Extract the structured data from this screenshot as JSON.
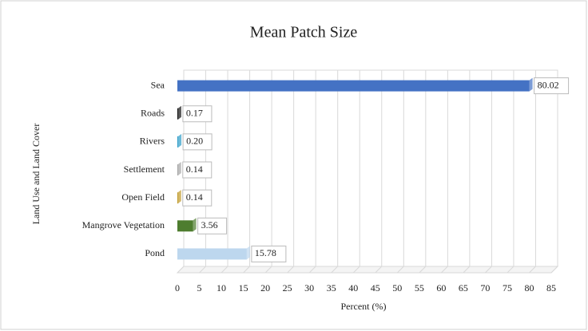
{
  "chart_data": {
    "type": "bar",
    "orientation": "horizontal",
    "title": "Mean Patch Size",
    "x_label": "Percent (%)",
    "y_label": "Land Use and Land Cover",
    "categories": [
      "Sea",
      "Roads",
      "Rivers",
      "Settlement",
      "Open Field",
      "Mangrove Vegetation",
      "Pond"
    ],
    "values": [
      80.02,
      0.17,
      0.2,
      0.14,
      0.14,
      3.56,
      15.78
    ],
    "value_labels": [
      "80.02",
      "0.17",
      "0.20",
      "0.14",
      "0.14",
      "3.56",
      "15.78"
    ],
    "colors": [
      "#4472c4",
      "#111111",
      "#2e9cc8",
      "#a5a5a5",
      "#c09a2a",
      "#4e7d2f",
      "#bdd7ee"
    ],
    "xlim": [
      0,
      85
    ],
    "xticks": [
      0,
      5,
      10,
      15,
      20,
      25,
      30,
      35,
      40,
      45,
      50,
      55,
      60,
      65,
      70,
      75,
      80,
      85
    ],
    "grid": true
  }
}
